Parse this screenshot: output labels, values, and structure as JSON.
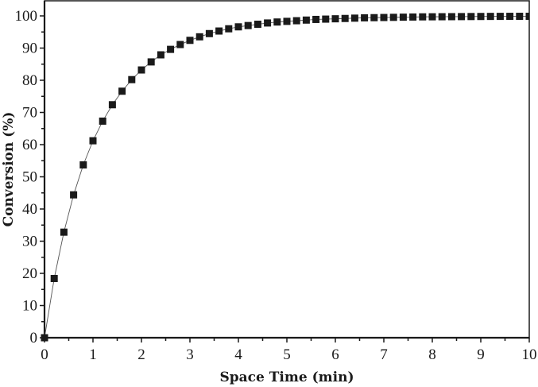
{
  "chart_data": {
    "type": "scatter",
    "title": "",
    "xlabel": "Space Time (min)",
    "ylabel": "Conversion (%)",
    "xlim": [
      0,
      10
    ],
    "ylim": [
      0,
      104.7
    ],
    "x_ticks": [
      0,
      1,
      2,
      3,
      4,
      5,
      6,
      7,
      8,
      9,
      10
    ],
    "y_ticks": [
      0,
      10,
      20,
      30,
      40,
      50,
      60,
      70,
      80,
      90,
      100
    ],
    "grid": false,
    "legend": null,
    "marker": "square",
    "line": "thin connecting line",
    "series": [
      {
        "name": "Conversion",
        "color": "#1a1a1a",
        "x": [
          0,
          0.2,
          0.4,
          0.6,
          0.8,
          1.0,
          1.2,
          1.4,
          1.6,
          1.8,
          2.0,
          2.2,
          2.4,
          2.6,
          2.8,
          3.0,
          3.2,
          3.4,
          3.6,
          3.8,
          4.0,
          4.2,
          4.4,
          4.6,
          4.8,
          5.0,
          5.2,
          5.4,
          5.6,
          5.8,
          6.0,
          6.2,
          6.4,
          6.6,
          6.8,
          7.0,
          7.2,
          7.4,
          7.6,
          7.8,
          8.0,
          8.2,
          8.4,
          8.6,
          8.8,
          9.0,
          9.2,
          9.4,
          9.6,
          9.8,
          10.0
        ],
        "values": [
          0,
          18.4,
          32.8,
          44.4,
          53.7,
          61.2,
          67.3,
          72.4,
          76.6,
          80.2,
          83.2,
          85.7,
          87.9,
          89.6,
          91.1,
          92.4,
          93.5,
          94.5,
          95.3,
          96.0,
          96.6,
          97.0,
          97.4,
          97.8,
          98.1,
          98.3,
          98.5,
          98.7,
          98.9,
          99.0,
          99.1,
          99.2,
          99.3,
          99.4,
          99.45,
          99.5,
          99.55,
          99.6,
          99.65,
          99.7,
          99.72,
          99.74,
          99.76,
          99.78,
          99.8,
          99.82,
          99.84,
          99.85,
          99.86,
          99.87,
          99.88
        ]
      }
    ]
  }
}
